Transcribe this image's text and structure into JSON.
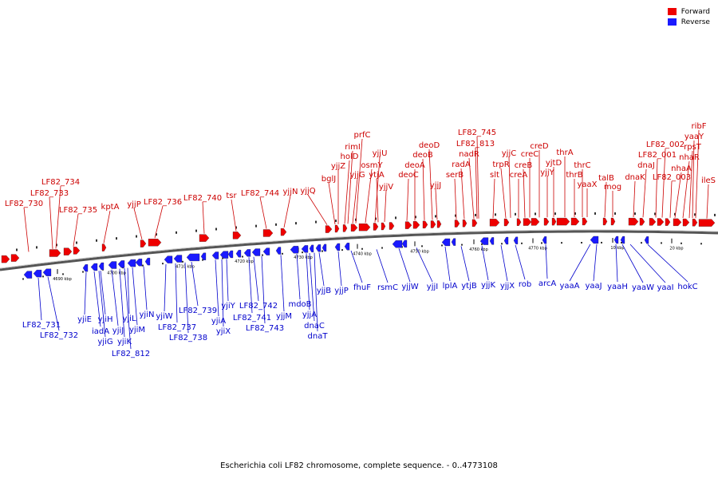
{
  "caption": "Escherichia coli LF82 chromosome, complete sequence. - 0..4773108",
  "legend": [
    {
      "label": "Forward",
      "color": "#ee0000"
    },
    {
      "label": "Reverse",
      "color": "#1a1aff"
    }
  ],
  "colors": {
    "forward": "#ee0000",
    "reverse": "#1a1aff",
    "forward_text": "#cc0000",
    "reverse_text": "#0000cc",
    "backbone": "#555555"
  },
  "ticks": [
    {
      "label": "4690 kbp"
    },
    {
      "label": "4700 kbp"
    },
    {
      "label": "4710 kbp"
    },
    {
      "label": "4720 kbp"
    },
    {
      "label": "4730 kbp"
    },
    {
      "label": "4740 kbp"
    },
    {
      "label": "4750 kbp"
    },
    {
      "label": "4760 kbp"
    },
    {
      "label": "4770 kbp"
    },
    {
      "label": "10 kbp"
    },
    {
      "label": "20 kbp"
    }
  ],
  "forward_labels": [
    "LF82_730",
    "LF82_733",
    "LF82_734",
    "LF82_735",
    "kptA",
    "yjjP",
    "LF82_736",
    "LF82_740",
    "tsr",
    "LF82_744",
    "yjjN",
    "yjjQ",
    "bglJ",
    "yjjZ",
    "holD",
    "rimI",
    "prfC",
    "yjjG",
    "osmY",
    "yjjU",
    "ytjA",
    "yjjV",
    "deoC",
    "deoA",
    "deoB",
    "deoD",
    "yjjJ",
    "serB",
    "radA",
    "nadR",
    "LF82_813",
    "LF82_745",
    "slt",
    "trpR",
    "yjjC",
    "creA",
    "creB",
    "creC",
    "creD",
    "yjjY",
    "yjtD",
    "thrB",
    "thrA",
    "thrC",
    "yaaX",
    "talB",
    "mog",
    "dnaK",
    "dnaJ",
    "LF82_001",
    "LF82_002",
    "LF82_003",
    "nhaA",
    "nhaR",
    "rpsT",
    "yaaY",
    "ribF",
    "ileS"
  ],
  "reverse_labels": [
    "LF82_731",
    "LF82_732",
    "yjiE",
    "iadA",
    "yjiG",
    "yjiH",
    "yjiJ",
    "yjiK",
    "LF82_812",
    "yjiL",
    "yjiM",
    "yjiN",
    "yjiW",
    "LF82_737",
    "LF82_738",
    "LF82_739",
    "yjiA",
    "yjiX",
    "yjiY",
    "LF82_742",
    "LF82_741",
    "LF82_743",
    "yjjM",
    "mdoB",
    "yjjA",
    "dnaC",
    "dnaT",
    "yjjB",
    "yjjP",
    "fhuF",
    "rsmC",
    "yjjW",
    "yjjI",
    "lplA",
    "ytjB",
    "yjjK",
    "yjjX",
    "rob",
    "arcA",
    "yaaA",
    "yaaJ",
    "yaaH",
    "yaaW",
    "yaaI",
    "hokC"
  ]
}
